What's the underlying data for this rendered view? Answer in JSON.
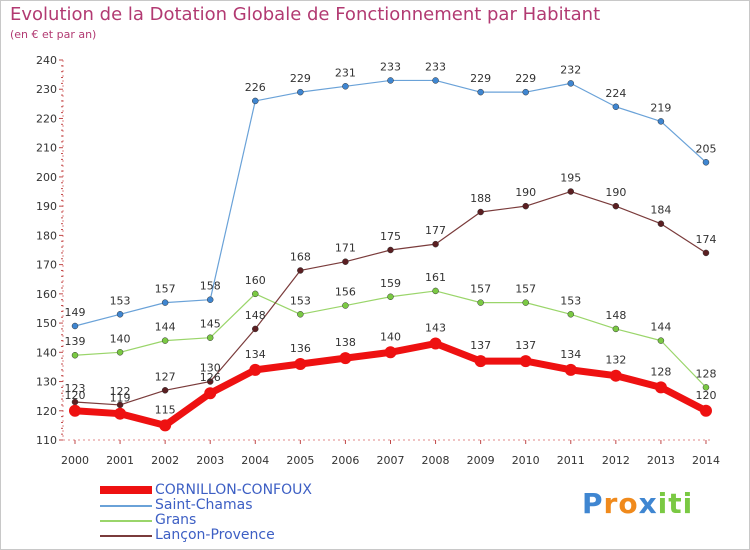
{
  "chart_data": {
    "type": "line",
    "title": "Evolution de la Dotation Globale de Fonctionnement par Habitant",
    "subtitle": "(en € et par an)",
    "x": [
      2000,
      2001,
      2002,
      2003,
      2004,
      2005,
      2006,
      2007,
      2008,
      2009,
      2010,
      2011,
      2012,
      2013,
      2014
    ],
    "ylim": [
      110,
      240
    ],
    "yticks": [
      110,
      120,
      130,
      140,
      150,
      160,
      170,
      180,
      190,
      200,
      210,
      220,
      230,
      240
    ],
    "grid": false,
    "legend_position": "bottom-left",
    "series": [
      {
        "name": "Saint-Chamas",
        "color": "#6aa2d8",
        "marker": "#3f86d1",
        "width": 1.2,
        "values": [
          149,
          153,
          157,
          158,
          226,
          229,
          231,
          233,
          233,
          229,
          229,
          232,
          224,
          219,
          205
        ]
      },
      {
        "name": "Grans",
        "color": "#9ad56a",
        "marker": "#7ac943",
        "width": 1.2,
        "values": [
          139,
          140,
          144,
          145,
          160,
          153,
          156,
          159,
          161,
          157,
          157,
          153,
          148,
          144,
          128
        ]
      },
      {
        "name": "Lançon-Provence",
        "color": "#7a3b3b",
        "marker": "#5b1f22",
        "width": 1.2,
        "values": [
          123,
          122,
          127,
          130,
          148,
          168,
          171,
          175,
          177,
          188,
          190,
          195,
          190,
          184,
          174
        ]
      },
      {
        "name": "CORNILLON-CONFOUX",
        "color": "#ee1111",
        "marker": "#ee1111",
        "width": 7,
        "values": [
          120,
          119,
          115,
          126,
          134,
          136,
          138,
          140,
          143,
          137,
          137,
          134,
          132,
          128,
          120
        ]
      }
    ],
    "legend_order": [
      "CORNILLON-CONFOUX",
      "Saint-Chamas",
      "Grans",
      "Lançon-Provence"
    ]
  },
  "logo": {
    "text": "Proxiti",
    "letters": [
      "P",
      "r",
      "o",
      "x",
      "i",
      "t",
      "i"
    ],
    "colors": [
      "#3f86d1",
      "#f08a1c",
      "#f08a1c",
      "#3f86d1",
      "#7ac943",
      "#7ac943",
      "#7ac943"
    ]
  }
}
